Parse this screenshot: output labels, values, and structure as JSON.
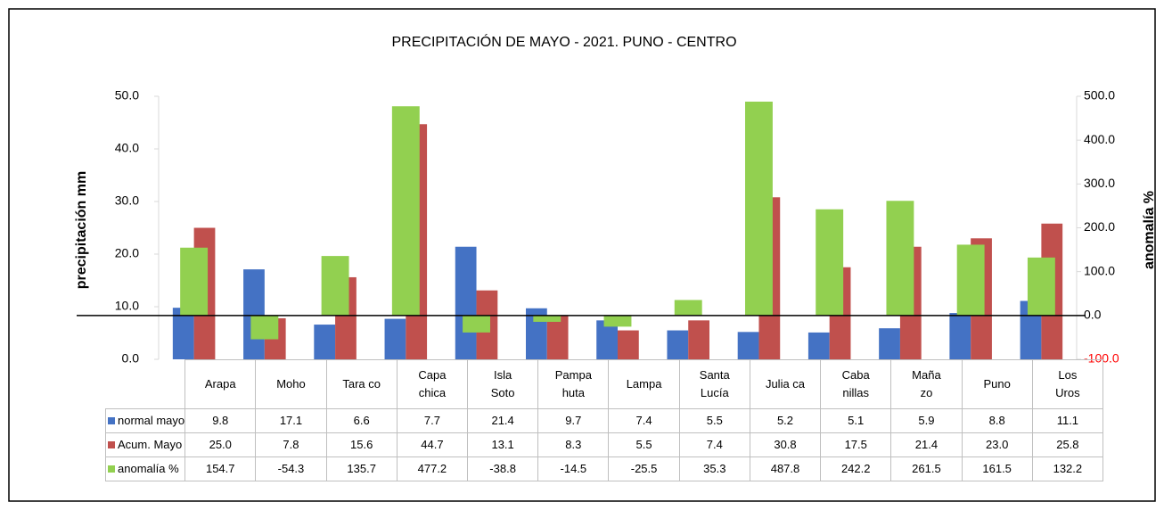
{
  "chart_data": {
    "type": "bar",
    "title": "PRECIPITACIÓN DE MAYO - 2021. PUNO - CENTRO",
    "y_label": "precipitación mm",
    "y2_label": "anomalía %",
    "categories": [
      "Arapa",
      "Moho",
      "Tara co",
      "Capa\nchica",
      "Isla\nSoto",
      "Pampa\nhuta",
      "Lampa",
      "Santa\nLucía",
      "Julia ca",
      "Caba\nnillas",
      "Maña\nzo",
      "Puno",
      "Los\nUros"
    ],
    "series": [
      {
        "name": "normal mayo",
        "color": "#4472c4",
        "axis": "y",
        "values": [
          9.8,
          17.1,
          6.6,
          7.7,
          21.4,
          9.7,
          7.4,
          5.5,
          5.2,
          5.1,
          5.9,
          8.8,
          11.1
        ],
        "value_labels": [
          "9.8",
          "17.1",
          "6.6",
          "7.7",
          "21.4",
          "9.7",
          "7.4",
          "5.5",
          "5.2",
          "5.1",
          "5.9",
          "8.8",
          "11.1"
        ]
      },
      {
        "name": "Acum. Mayo",
        "color": "#c0504d",
        "axis": "y",
        "values": [
          25.0,
          7.8,
          15.6,
          44.7,
          13.1,
          8.3,
          5.5,
          7.4,
          30.8,
          17.5,
          21.4,
          23.0,
          25.8
        ],
        "value_labels": [
          "25.0",
          "7.8",
          "15.6",
          "44.7",
          "13.1",
          "8.3",
          "5.5",
          "7.4",
          "30.8",
          "17.5",
          "21.4",
          "23.0",
          "25.8"
        ]
      },
      {
        "name": "anomalía %",
        "color": "#92d050",
        "axis": "y2",
        "values": [
          154.7,
          -54.3,
          135.7,
          477.2,
          -38.8,
          -14.5,
          -25.5,
          35.3,
          487.8,
          242.2,
          261.5,
          161.5,
          132.2
        ],
        "value_labels": [
          "154.7",
          "-54.3",
          "135.7",
          "477.2",
          "-38.8",
          "-14.5",
          "-25.5",
          "35.3",
          "487.8",
          "242.2",
          "261.5",
          "161.5",
          "132.2"
        ]
      }
    ],
    "ylim": [
      0,
      50
    ],
    "yticks": [
      {
        "value": 0,
        "label": "0.0"
      },
      {
        "value": 10,
        "label": "10.0"
      },
      {
        "value": 20,
        "label": "20.0"
      },
      {
        "value": 30,
        "label": "30.0"
      },
      {
        "value": 40,
        "label": "40.0"
      },
      {
        "value": 50,
        "label": "50.0"
      }
    ],
    "y2lim": [
      -100,
      500
    ],
    "y2ticks": [
      {
        "value": -100,
        "label": "-100.0"
      },
      {
        "value": 0,
        "label": "0.0"
      },
      {
        "value": 100,
        "label": "100.0"
      },
      {
        "value": 200,
        "label": "200.0"
      },
      {
        "value": 300,
        "label": "300.0"
      },
      {
        "value": 400,
        "label": "400.0"
      },
      {
        "value": 500,
        "label": "500.0"
      }
    ],
    "y2tick_colors": [
      "#ff0000",
      "#000000",
      "#000000",
      "#000000",
      "#000000",
      "#000000",
      "#000000"
    ],
    "grid": false
  }
}
